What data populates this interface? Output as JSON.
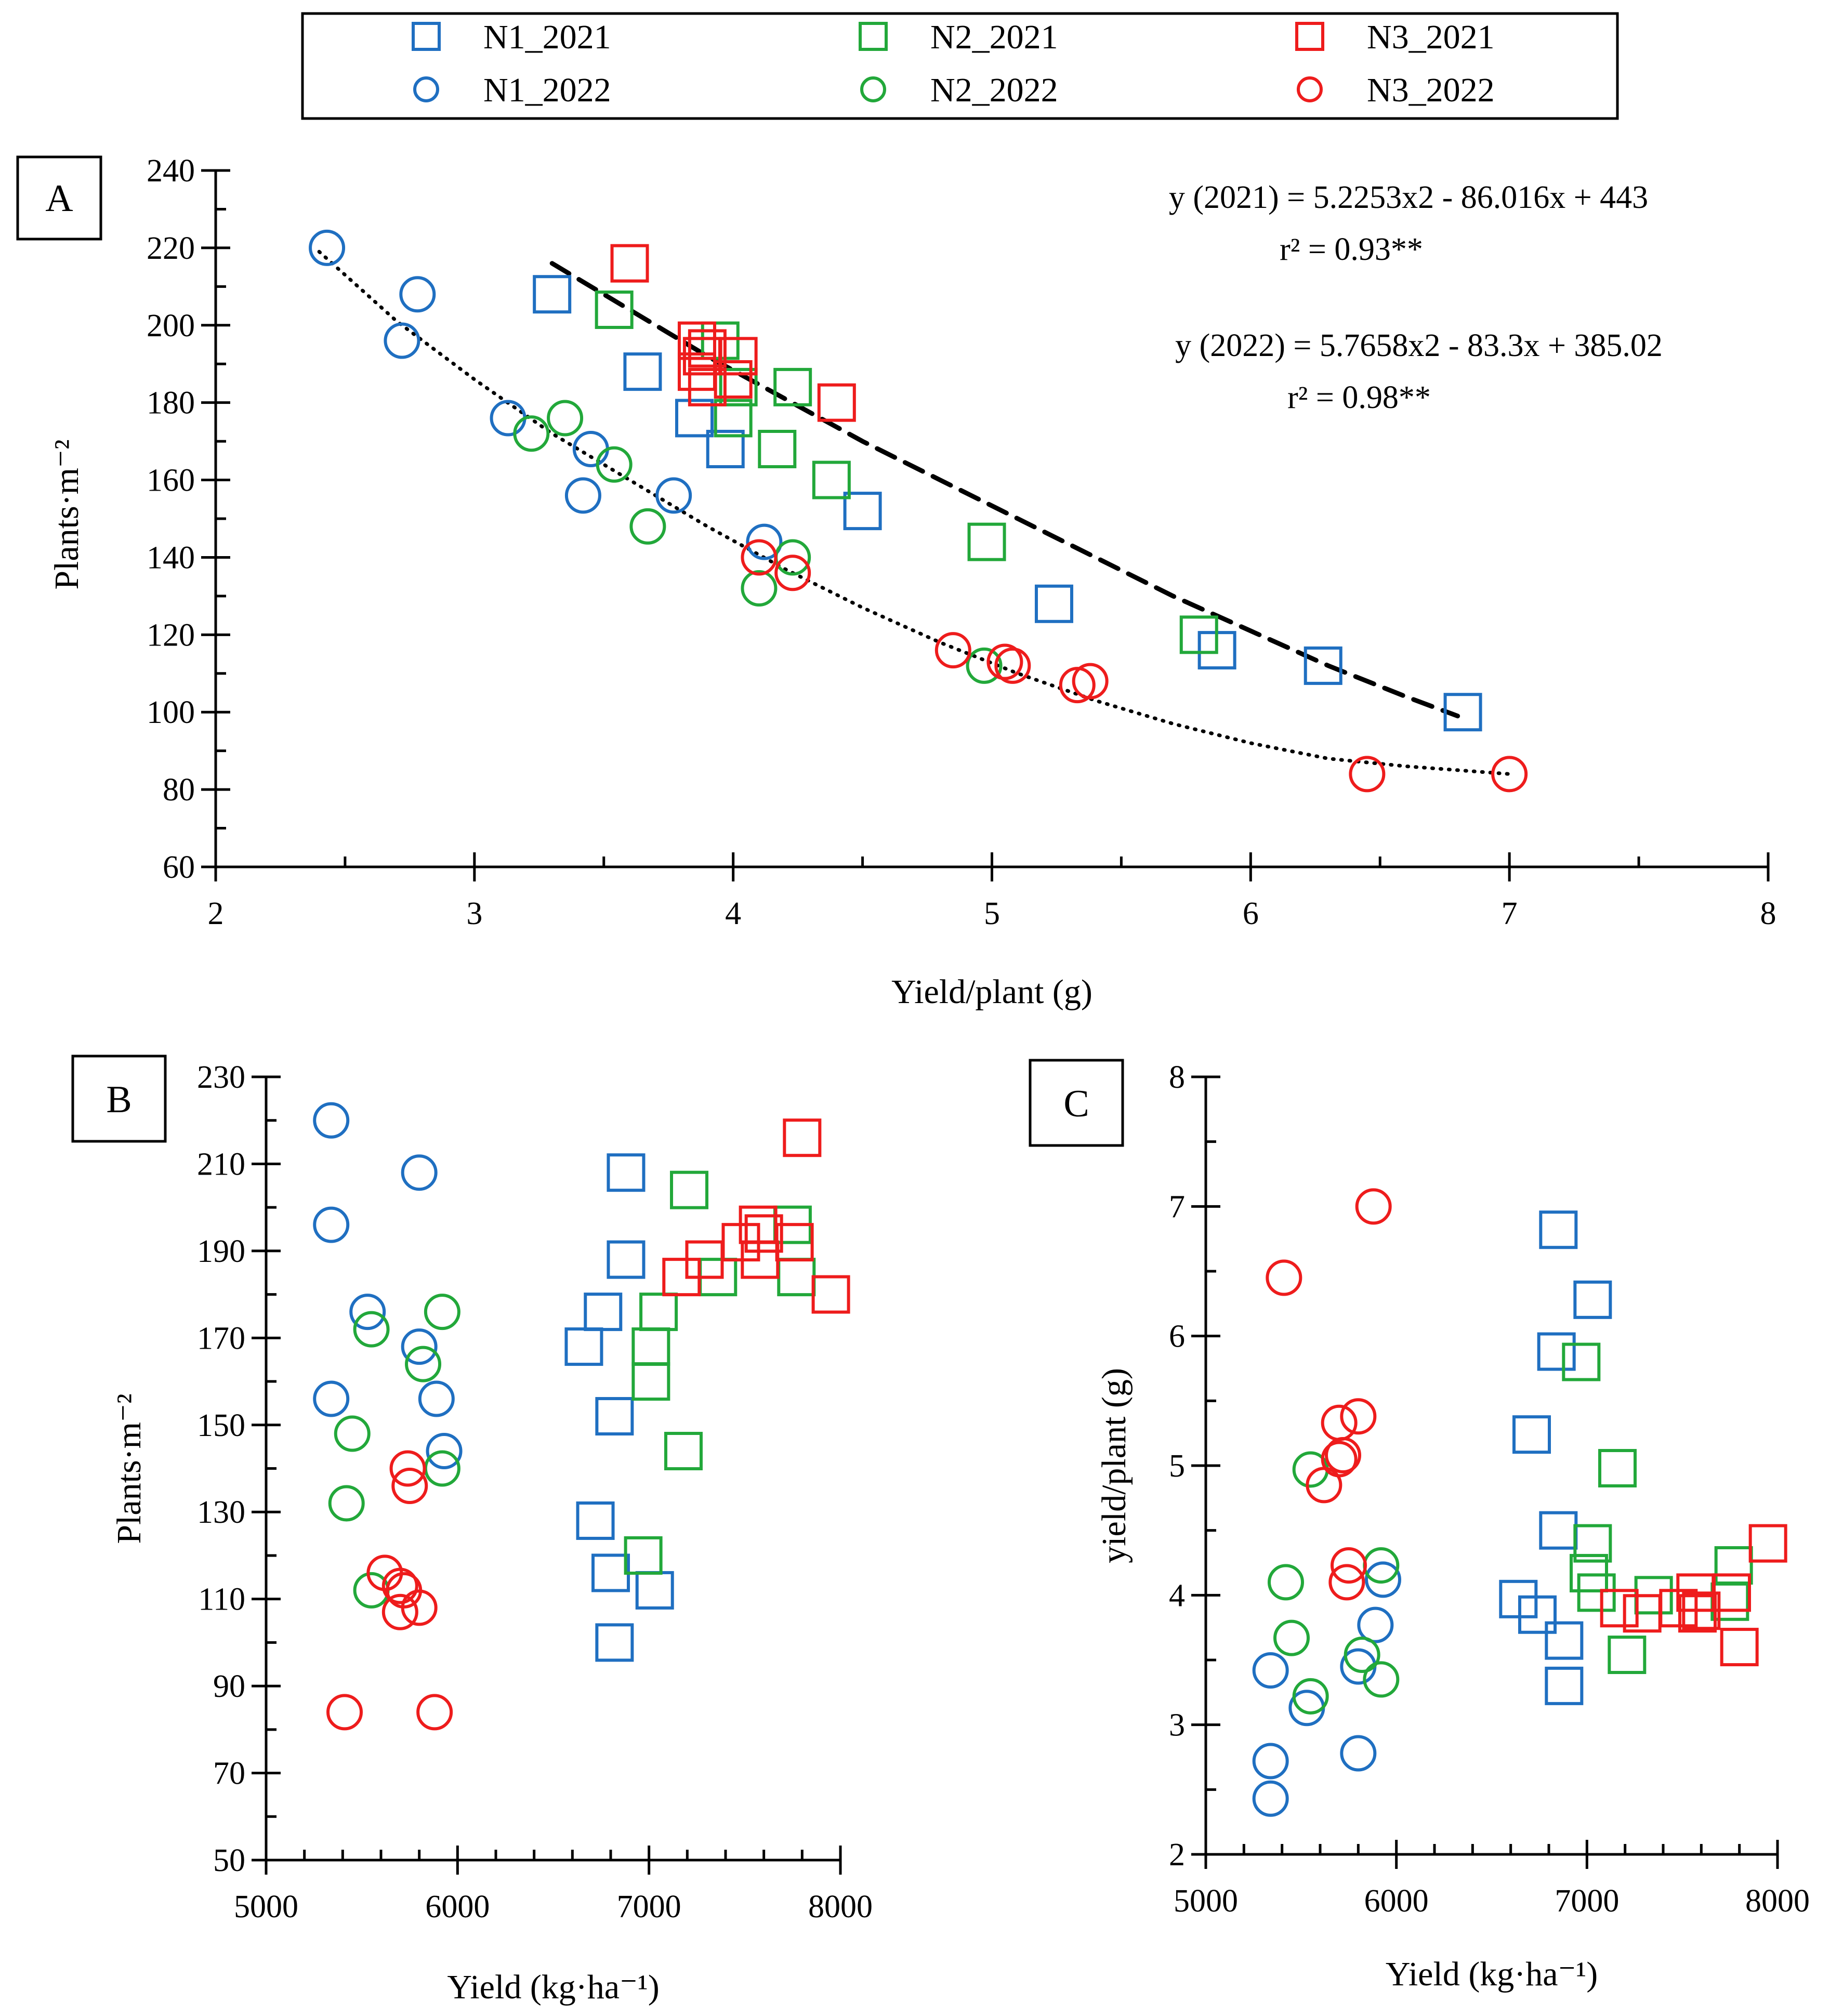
{
  "colors": {
    "N1": "#1f6fc1",
    "N2": "#22a83a",
    "N3": "#ee1c1c"
  },
  "legend": {
    "entries": [
      {
        "label": "N1_2021",
        "group": "N1",
        "marker": "square"
      },
      {
        "label": "N2_2021",
        "group": "N2",
        "marker": "square"
      },
      {
        "label": "N3_2021",
        "group": "N3",
        "marker": "square"
      },
      {
        "label": "N1_2022",
        "group": "N1",
        "marker": "circle"
      },
      {
        "label": "N2_2022",
        "group": "N2",
        "marker": "circle"
      },
      {
        "label": "N3_2022",
        "group": "N3",
        "marker": "circle"
      }
    ]
  },
  "chart_data": [
    {
      "id": "A",
      "panel_label": "A",
      "type": "scatter",
      "xlabel": "Yield/plant (g)",
      "ylabel": "Plants·m⁻²",
      "xlim": [
        2,
        8
      ],
      "ylim": [
        60,
        240
      ],
      "xticks": [
        2,
        3,
        4,
        5,
        6,
        7,
        8
      ],
      "yticks": [
        60,
        80,
        100,
        120,
        140,
        160,
        180,
        200,
        220,
        240
      ],
      "annotations": [
        "y (2021) = 5.2253x2 - 86.016x + 443",
        "r² = 0.93**",
        "y (2022) = 5.7658x2 - 83.3x + 385.02",
        "r² = 0.98**"
      ],
      "trendlines": [
        {
          "name": "2021",
          "style": "dashed",
          "x_range": [
            3.3,
            6.8
          ],
          "points": [
            [
              3.3,
              216
            ],
            [
              3.6,
              204
            ],
            [
              3.9,
              192
            ],
            [
              4.2,
              181
            ],
            [
              4.5,
              170
            ],
            [
              4.8,
              160
            ],
            [
              5.1,
              150
            ],
            [
              5.4,
              140
            ],
            [
              5.7,
              130
            ],
            [
              6.0,
              121
            ],
            [
              6.3,
              112
            ],
            [
              6.6,
              104
            ],
            [
              6.8,
              99
            ]
          ]
        },
        {
          "name": "2022",
          "style": "dotted",
          "x_range": [
            2.4,
            7.0
          ],
          "points": [
            [
              2.4,
              219
            ],
            [
              2.7,
              201
            ],
            [
              3.0,
              186
            ],
            [
              3.3,
              172
            ],
            [
              3.6,
              160
            ],
            [
              3.9,
              148
            ],
            [
              4.2,
              137
            ],
            [
              4.5,
              127
            ],
            [
              4.8,
              118
            ],
            [
              5.1,
              110
            ],
            [
              5.4,
              103
            ],
            [
              5.7,
              97
            ],
            [
              6.0,
              92
            ],
            [
              6.3,
              88
            ],
            [
              6.6,
              86
            ],
            [
              7.0,
              84
            ]
          ]
        }
      ],
      "series": [
        {
          "name": "N1_2021",
          "group": "N1",
          "marker": "square",
          "points": [
            [
              3.3,
              208
            ],
            [
              3.65,
              188
            ],
            [
              3.85,
              176
            ],
            [
              3.97,
              168
            ],
            [
              4.5,
              152
            ],
            [
              5.24,
              128
            ],
            [
              5.87,
              116
            ],
            [
              6.28,
              112
            ],
            [
              6.82,
              100
            ]
          ]
        },
        {
          "name": "N2_2021",
          "group": "N2",
          "marker": "square",
          "points": [
            [
              3.54,
              204
            ],
            [
              3.95,
              196
            ],
            [
              4.02,
              184
            ],
            [
              4.0,
              176
            ],
            [
              4.23,
              184
            ],
            [
              4.17,
              168
            ],
            [
              4.38,
              160
            ],
            [
              4.98,
              144
            ],
            [
              5.8,
              120
            ]
          ]
        },
        {
          "name": "N3_2021",
          "group": "N3",
          "marker": "square",
          "points": [
            [
              3.6,
              216
            ],
            [
              3.86,
              196
            ],
            [
              3.9,
              194
            ],
            [
              3.88,
              192
            ],
            [
              4.02,
              192
            ],
            [
              3.86,
              188
            ],
            [
              4.0,
              186
            ],
            [
              3.9,
              184
            ],
            [
              4.4,
              180
            ]
          ]
        },
        {
          "name": "N1_2022",
          "group": "N1",
          "marker": "circle",
          "points": [
            [
              2.43,
              220
            ],
            [
              2.78,
              208
            ],
            [
              2.72,
              196
            ],
            [
              3.13,
              176
            ],
            [
              3.45,
              168
            ],
            [
              3.42,
              156
            ],
            [
              3.77,
              156
            ],
            [
              4.12,
              144
            ]
          ]
        },
        {
          "name": "N2_2022",
          "group": "N2",
          "marker": "circle",
          "points": [
            [
              3.22,
              172
            ],
            [
              3.35,
              176
            ],
            [
              3.54,
              164
            ],
            [
              3.67,
              148
            ],
            [
              4.23,
              140
            ],
            [
              4.1,
              132
            ],
            [
              4.97,
              112
            ]
          ]
        },
        {
          "name": "N3_2022",
          "group": "N3",
          "marker": "circle",
          "points": [
            [
              4.1,
              140
            ],
            [
              4.23,
              136
            ],
            [
              4.85,
              116
            ],
            [
              5.05,
              113
            ],
            [
              5.08,
              112
            ],
            [
              5.33,
              107
            ],
            [
              5.38,
              108
            ],
            [
              6.45,
              84
            ],
            [
              7.0,
              84
            ]
          ]
        }
      ]
    },
    {
      "id": "B",
      "panel_label": "B",
      "type": "scatter",
      "xlabel": "Yield (kg·ha⁻¹)",
      "ylabel": "Plants·m⁻²",
      "xlim": [
        5000,
        8000
      ],
      "ylim": [
        50,
        230
      ],
      "xticks": [
        5000,
        6000,
        7000,
        8000
      ],
      "yticks": [
        50,
        70,
        90,
        110,
        130,
        150,
        170,
        190,
        210,
        230
      ],
      "series": [
        {
          "name": "N1_2021",
          "group": "N1",
          "marker": "square",
          "points": [
            [
              6880,
              208
            ],
            [
              6880,
              188
            ],
            [
              6760,
              176
            ],
            [
              6660,
              168
            ],
            [
              6820,
              152
            ],
            [
              6720,
              128
            ],
            [
              6800,
              116
            ],
            [
              7030,
              112
            ],
            [
              6820,
              100
            ]
          ]
        },
        {
          "name": "N2_2021",
          "group": "N2",
          "marker": "square",
          "points": [
            [
              7210,
              204
            ],
            [
              7750,
              196
            ],
            [
              7770,
              184
            ],
            [
              7360,
              184
            ],
            [
              7050,
              176
            ],
            [
              7010,
              168
            ],
            [
              7010,
              160
            ],
            [
              7180,
              144
            ],
            [
              6970,
              120
            ]
          ]
        },
        {
          "name": "N3_2021",
          "group": "N3",
          "marker": "square",
          "points": [
            [
              7800,
              216
            ],
            [
              7570,
              196
            ],
            [
              7600,
              194
            ],
            [
              7760,
              192
            ],
            [
              7480,
              192
            ],
            [
              7290,
              188
            ],
            [
              7580,
              188
            ],
            [
              7170,
              184
            ],
            [
              7950,
              180
            ]
          ]
        },
        {
          "name": "N1_2022",
          "group": "N1",
          "marker": "circle",
          "points": [
            [
              5340,
              220
            ],
            [
              5800,
              208
            ],
            [
              5340,
              196
            ],
            [
              5530,
              176
            ],
            [
              5800,
              168
            ],
            [
              5340,
              156
            ],
            [
              5890,
              156
            ],
            [
              5930,
              144
            ]
          ]
        },
        {
          "name": "N2_2022",
          "group": "N2",
          "marker": "circle",
          "points": [
            [
              5920,
              176
            ],
            [
              5550,
              172
            ],
            [
              5820,
              164
            ],
            [
              5450,
              148
            ],
            [
              5920,
              140
            ],
            [
              5420,
              132
            ],
            [
              5550,
              112
            ]
          ]
        },
        {
          "name": "N3_2022",
          "group": "N3",
          "marker": "circle",
          "points": [
            [
              5740,
              140
            ],
            [
              5750,
              136
            ],
            [
              5620,
              116
            ],
            [
              5700,
              113
            ],
            [
              5720,
              112
            ],
            [
              5700,
              107
            ],
            [
              5800,
              108
            ],
            [
              5410,
              84
            ],
            [
              5880,
              84
            ]
          ]
        }
      ]
    },
    {
      "id": "C",
      "panel_label": "C",
      "type": "scatter",
      "xlabel": "Yield (kg·ha⁻¹)",
      "ylabel": "yield/plant (g)",
      "xlim": [
        5000,
        8000
      ],
      "ylim": [
        2,
        8
      ],
      "xticks": [
        5000,
        6000,
        7000,
        8000
      ],
      "yticks": [
        2,
        3,
        4,
        5,
        6,
        7,
        8
      ],
      "series": [
        {
          "name": "N1_2021",
          "group": "N1",
          "marker": "square",
          "points": [
            [
              6850,
              6.82
            ],
            [
              7030,
              6.28
            ],
            [
              6840,
              5.88
            ],
            [
              6710,
              5.24
            ],
            [
              6850,
              4.5
            ],
            [
              6640,
              3.97
            ],
            [
              6740,
              3.85
            ],
            [
              6880,
              3.65
            ],
            [
              6880,
              3.3
            ]
          ]
        },
        {
          "name": "N2_2021",
          "group": "N2",
          "marker": "square",
          "points": [
            [
              6970,
              5.8
            ],
            [
              7160,
              4.98
            ],
            [
              7030,
              4.4
            ],
            [
              7010,
              4.17
            ],
            [
              7050,
              4.02
            ],
            [
              7350,
              4.0
            ],
            [
              7770,
              4.23
            ],
            [
              7750,
              3.95
            ],
            [
              7210,
              3.54
            ]
          ]
        },
        {
          "name": "N3_2021",
          "group": "N3",
          "marker": "square",
          "points": [
            [
              7950,
              4.4
            ],
            [
              7760,
              4.02
            ],
            [
              7570,
              4.02
            ],
            [
              7480,
              3.9
            ],
            [
              7600,
              3.88
            ],
            [
              7580,
              3.86
            ],
            [
              7170,
              3.9
            ],
            [
              7290,
              3.86
            ],
            [
              7800,
              3.6
            ]
          ]
        },
        {
          "name": "N1_2022",
          "group": "N1",
          "marker": "circle",
          "points": [
            [
              5930,
              4.12
            ],
            [
              5890,
              3.77
            ],
            [
              5800,
              3.45
            ],
            [
              5340,
              3.42
            ],
            [
              5530,
              3.13
            ],
            [
              5800,
              2.78
            ],
            [
              5340,
              2.72
            ],
            [
              5340,
              2.43
            ]
          ]
        },
        {
          "name": "N2_2022",
          "group": "N2",
          "marker": "circle",
          "points": [
            [
              5550,
              4.97
            ],
            [
              5920,
              4.23
            ],
            [
              5420,
              4.1
            ],
            [
              5450,
              3.67
            ],
            [
              5820,
              3.54
            ],
            [
              5920,
              3.35
            ],
            [
              5550,
              3.22
            ]
          ]
        },
        {
          "name": "N3_2022",
          "group": "N3",
          "marker": "circle",
          "points": [
            [
              5880,
              7.0
            ],
            [
              5410,
              6.45
            ],
            [
              5800,
              5.38
            ],
            [
              5700,
              5.33
            ],
            [
              5720,
              5.08
            ],
            [
              5700,
              5.05
            ],
            [
              5620,
              4.85
            ],
            [
              5750,
              4.23
            ],
            [
              5740,
              4.1
            ]
          ]
        }
      ]
    }
  ]
}
